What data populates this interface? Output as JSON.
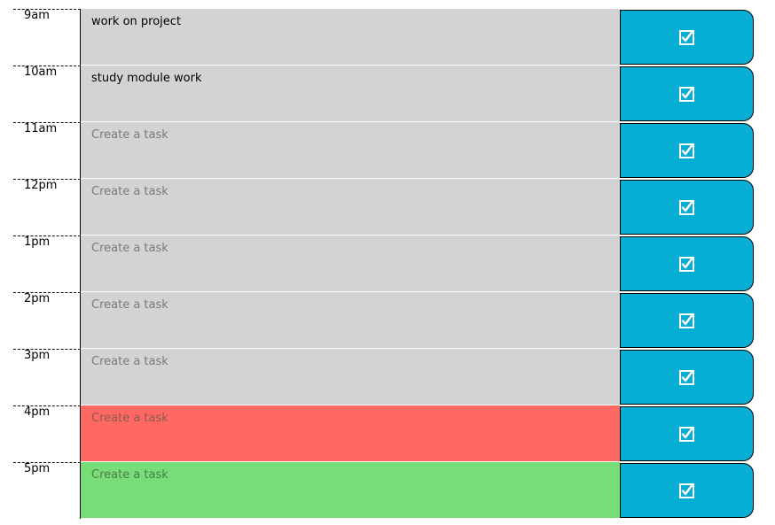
{
  "colors": {
    "past": "#d3d3d3",
    "present": "#ff6961",
    "future": "#77dd77",
    "save_button": "#06aed5"
  },
  "hours": [
    {
      "label": "9am",
      "task": "work on project",
      "placeholder": "Create a task",
      "state": "past"
    },
    {
      "label": "10am",
      "task": "study module work",
      "placeholder": "Create a task",
      "state": "past"
    },
    {
      "label": "11am",
      "task": "",
      "placeholder": "Create a task",
      "state": "past"
    },
    {
      "label": "12pm",
      "task": "",
      "placeholder": "Create a task",
      "state": "past"
    },
    {
      "label": "1pm",
      "task": "",
      "placeholder": "Create a task",
      "state": "past"
    },
    {
      "label": "2pm",
      "task": "",
      "placeholder": "Create a task",
      "state": "past"
    },
    {
      "label": "3pm",
      "task": "",
      "placeholder": "Create a task",
      "state": "past"
    },
    {
      "label": "4pm",
      "task": "",
      "placeholder": "Create a task",
      "state": "present"
    },
    {
      "label": "5pm",
      "task": "",
      "placeholder": "Create a task",
      "state": "future"
    }
  ],
  "save_icon": "checkbox-checked-icon"
}
